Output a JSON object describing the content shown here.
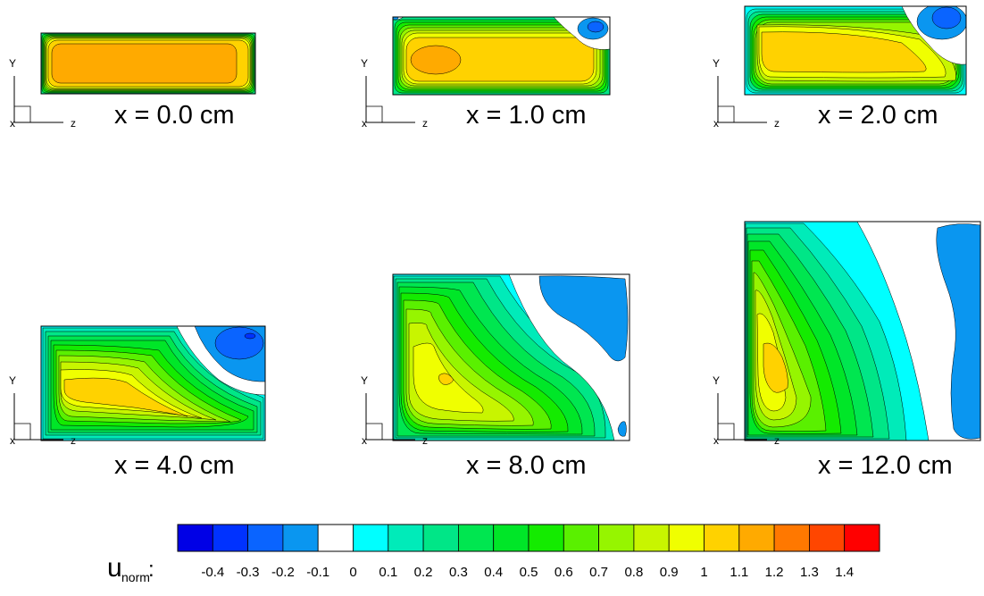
{
  "axis_labels": {
    "vertical": "Y",
    "horizontal": "Z",
    "out_of_plane": "X"
  },
  "panels": [
    {
      "id": "p0",
      "label": "x = 0.0 cm"
    },
    {
      "id": "p1",
      "label": "x = 1.0 cm"
    },
    {
      "id": "p2",
      "label": "x = 2.0 cm"
    },
    {
      "id": "p4",
      "label": "x = 4.0 cm"
    },
    {
      "id": "p8",
      "label": "x = 8.0 cm"
    },
    {
      "id": "p12",
      "label": "x = 12.0 cm"
    }
  ],
  "legend": {
    "variable": "u",
    "variable_subscript": "norm",
    "separator": ":",
    "ticks": [
      "-0.4",
      "-0.3",
      "-0.2",
      "-0.1",
      "0",
      "0.1",
      "0.2",
      "0.3",
      "0.4",
      "0.5",
      "0.6",
      "0.7",
      "0.8",
      "0.9",
      "1",
      "1.1",
      "1.2",
      "1.3",
      "1.4"
    ],
    "colors": [
      "#0000e6",
      "#0032ff",
      "#0a64ff",
      "#0a96f0",
      "#ffffff",
      "#00ffff",
      "#00ebb9",
      "#00e687",
      "#00e650",
      "#00e628",
      "#14eb00",
      "#5af000",
      "#96f500",
      "#c8f500",
      "#f0ff00",
      "#ffd200",
      "#ffaa00",
      "#ff7800",
      "#ff4600",
      "#ff0000"
    ]
  },
  "colors": {
    "zero_region": "#ffffff",
    "negative_core": "#0a64ff",
    "negative_rim": "#0a96f0",
    "contour_line": "#000000"
  }
}
